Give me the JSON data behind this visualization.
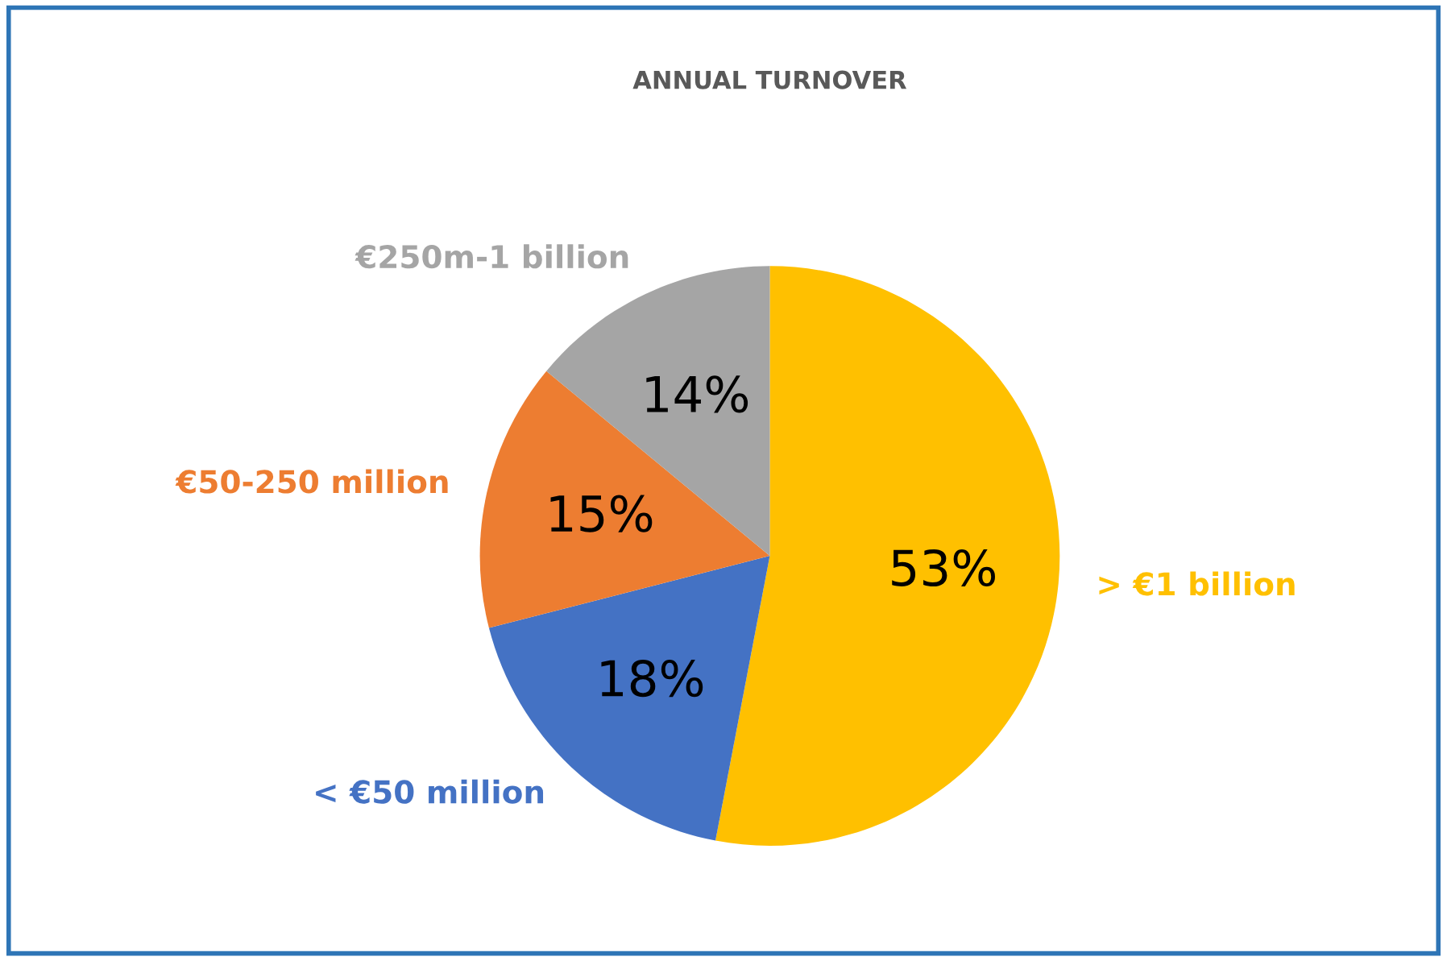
{
  "chart_data": {
    "type": "pie",
    "title": "ANNUAL TURNOVER",
    "categories": [
      "> €1 billion",
      "< €50 million",
      "€50-250 million",
      "€250m-1 billion"
    ],
    "values": [
      53,
      18,
      15,
      14
    ],
    "colors": [
      "#ffc000",
      "#4472c4",
      "#ed7d31",
      "#a5a5a5"
    ],
    "value_labels": [
      "53%",
      "18%",
      "15%",
      "14%"
    ],
    "legend": false
  }
}
